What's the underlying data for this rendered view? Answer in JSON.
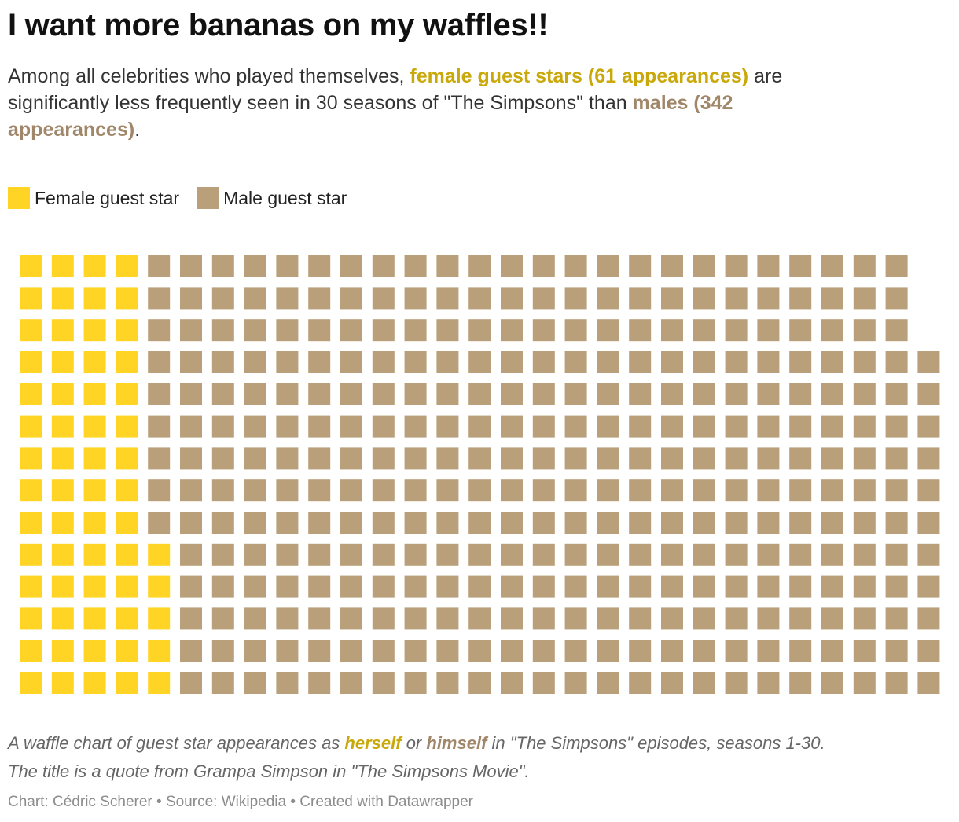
{
  "header": {
    "title": "I want more bananas on my waffles!!",
    "subtitle": {
      "part1": "Among all celebrities who played themselves, ",
      "female_highlight": "female guest stars (61 appearances)",
      "part2": " are significantly less frequently seen in 30 seasons of \"The Simpsons\" than ",
      "male_highlight": "males (342 appearances)",
      "part3": "."
    }
  },
  "legend": {
    "female_label": "Female guest star",
    "male_label": "Male guest star"
  },
  "colors": {
    "female": "#ffd425",
    "male": "#b9a07a",
    "female_text": "#c9a80a",
    "male_text": "#a0876a"
  },
  "chart_data": {
    "type": "waffle",
    "title": "I want more bananas on my waffles!!",
    "unit": "one square = one guest star appearance as themselves",
    "rows": 14,
    "fill_order": "column-major, left to right, bottom to top",
    "categories": [
      "Female guest star",
      "Male guest star"
    ],
    "values": [
      61,
      342
    ],
    "total": 403
  },
  "notes": {
    "line1_part1": "A waffle chart of guest star appearances as ",
    "line1_herself": "herself",
    "line1_part2": " or ",
    "line1_himself": "himself",
    "line1_part3": " in \"The Simpsons\" episodes, seasons 1-30.",
    "line2": "The title is a quote from Grampa Simpson in \"The Simpsons Movie\"."
  },
  "footer": {
    "credits": "Chart: Cédric Scherer • Source: Wikipedia • Created with Datawrapper"
  }
}
